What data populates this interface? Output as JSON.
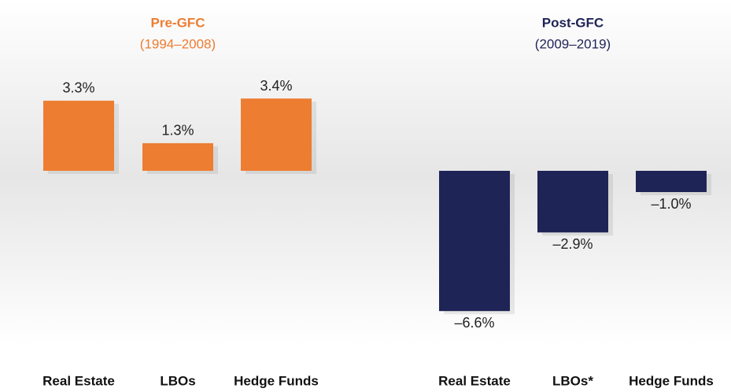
{
  "chart_data": [
    {
      "type": "bar",
      "title": "Pre-GFC",
      "subtitle": "(1994–2008)",
      "categories": [
        "Real Estate",
        "LBOs",
        "Hedge Funds"
      ],
      "values": [
        3.3,
        1.3,
        3.4
      ],
      "value_labels": [
        "3.3%",
        "1.3%",
        "3.4%"
      ],
      "color": "#ed7d31"
    },
    {
      "type": "bar",
      "title": "Post-GFC",
      "subtitle": "(2009–2019)",
      "categories": [
        "Real Estate",
        "LBOs*",
        "Hedge Funds"
      ],
      "values": [
        -6.6,
        -2.9,
        -1.0
      ],
      "value_labels": [
        "–6.6%",
        "–2.9%",
        "–1.0%"
      ],
      "color": "#1f2456"
    }
  ]
}
